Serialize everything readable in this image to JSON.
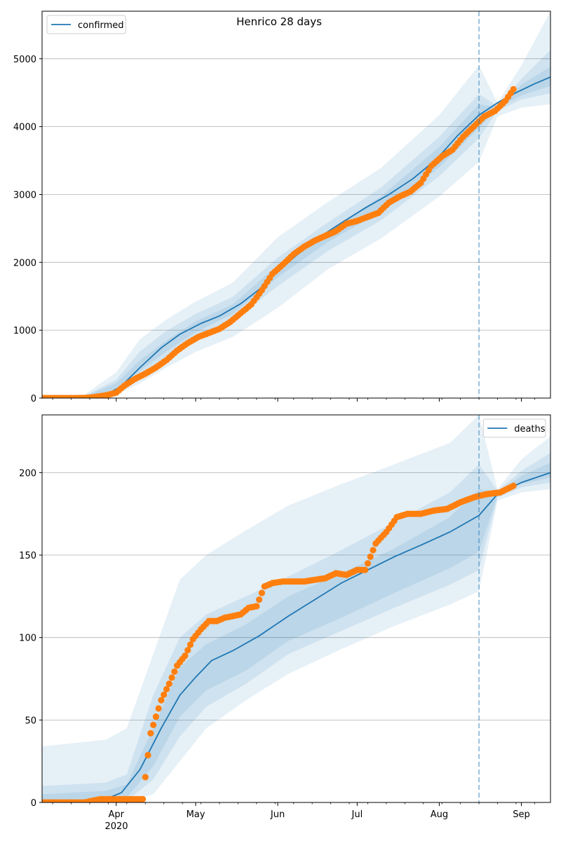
{
  "figure": {
    "title": "Henrico 28 days",
    "x_axis_year_label": "2020",
    "x_tick_labels": [
      "Apr",
      "May",
      "Jun",
      "Jul",
      "Aug",
      "Sep"
    ],
    "x_tick_dates": [
      "2020-04-01",
      "2020-05-01",
      "2020-06-01",
      "2020-07-01",
      "2020-08-01",
      "2020-09-01"
    ],
    "x_range": [
      "2020-03-04",
      "2020-09-12"
    ],
    "forecast_start_date": "2020-08-16"
  },
  "chart_data": [
    {
      "type": "line",
      "title": "Henrico 28 days",
      "xlabel": "",
      "ylabel": "",
      "ylim": [
        0,
        5700
      ],
      "yticks": [
        0,
        1000,
        2000,
        3000,
        4000,
        5000
      ],
      "grid": "horizontal",
      "legend": {
        "location": "upper-left",
        "entries": [
          "confirmed"
        ]
      },
      "colors": {
        "model": "#1f77b4",
        "observed": "#ff7f0e",
        "band": "#1f77b4"
      },
      "model_median": {
        "name": "confirmed",
        "x": [
          "2020-03-04",
          "2020-03-20",
          "2020-03-28",
          "2020-04-03",
          "2020-04-10",
          "2020-04-18",
          "2020-04-25",
          "2020-05-03",
          "2020-05-10",
          "2020-05-18",
          "2020-05-25",
          "2020-06-01",
          "2020-06-08",
          "2020-06-16",
          "2020-06-25",
          "2020-07-04",
          "2020-07-13",
          "2020-07-22",
          "2020-07-31",
          "2020-08-08",
          "2020-08-16",
          "2020-08-23",
          "2020-08-30",
          "2020-09-06",
          "2020-09-12"
        ],
        "y": [
          5,
          10,
          40,
          180,
          450,
          740,
          940,
          1100,
          1210,
          1390,
          1600,
          1870,
          2100,
          2350,
          2580,
          2800,
          3000,
          3230,
          3520,
          3870,
          4170,
          4350,
          4500,
          4630,
          4730
        ]
      },
      "uncertainty_bands": [
        {
          "level": "outer",
          "x": [
            "2020-03-20",
            "2020-04-01",
            "2020-04-10",
            "2020-04-20",
            "2020-05-01",
            "2020-05-15",
            "2020-06-01",
            "2020-06-20",
            "2020-07-10",
            "2020-08-01",
            "2020-08-16",
            "2020-08-23",
            "2020-09-01",
            "2020-09-12"
          ],
          "lower": [
            0,
            50,
            220,
            450,
            680,
            900,
            1330,
            1900,
            2350,
            2970,
            3480,
            4150,
            4280,
            4330
          ],
          "upper": [
            50,
            380,
            870,
            1160,
            1420,
            1700,
            2370,
            2890,
            3390,
            4170,
            4900,
            4350,
            4900,
            5700
          ]
        },
        {
          "level": "middle",
          "x": [
            "2020-03-20",
            "2020-04-01",
            "2020-04-10",
            "2020-04-20",
            "2020-05-01",
            "2020-05-15",
            "2020-06-01",
            "2020-06-20",
            "2020-07-10",
            "2020-08-01",
            "2020-08-16",
            "2020-08-23",
            "2020-09-01",
            "2020-09-12"
          ],
          "lower": [
            0,
            90,
            330,
            600,
            880,
            1130,
            1650,
            2170,
            2620,
            3270,
            3830,
            4230,
            4400,
            4490
          ],
          "upper": [
            30,
            270,
            690,
            990,
            1240,
            1490,
            2070,
            2590,
            3100,
            3850,
            4480,
            4300,
            4700,
            5130
          ]
        },
        {
          "level": "inner",
          "x": [
            "2020-03-20",
            "2020-04-01",
            "2020-04-10",
            "2020-04-20",
            "2020-05-01",
            "2020-05-15",
            "2020-06-01",
            "2020-06-20",
            "2020-07-10",
            "2020-08-01",
            "2020-08-16",
            "2020-08-23",
            "2020-09-01",
            "2020-09-12"
          ],
          "lower": [
            0,
            130,
            400,
            690,
            970,
            1240,
            1780,
            2300,
            2750,
            3400,
            3980,
            4270,
            4460,
            4600
          ],
          "upper": [
            20,
            220,
            560,
            850,
            1130,
            1380,
            1960,
            2470,
            2970,
            3700,
            4330,
            4290,
            4620,
            4880
          ]
        }
      ],
      "observed": {
        "x": [
          "2020-03-04",
          "2020-03-08",
          "2020-03-12",
          "2020-03-16",
          "2020-03-20",
          "2020-03-24",
          "2020-03-28",
          "2020-04-01",
          "2020-04-04",
          "2020-04-08",
          "2020-04-12",
          "2020-04-16",
          "2020-04-20",
          "2020-04-24",
          "2020-04-28",
          "2020-05-02",
          "2020-05-06",
          "2020-05-10",
          "2020-05-14",
          "2020-05-18",
          "2020-05-22",
          "2020-05-26",
          "2020-05-30",
          "2020-06-03",
          "2020-06-07",
          "2020-06-11",
          "2020-06-15",
          "2020-06-19",
          "2020-06-23",
          "2020-06-27",
          "2020-07-01",
          "2020-07-05",
          "2020-07-09",
          "2020-07-13",
          "2020-07-17",
          "2020-07-21",
          "2020-07-25",
          "2020-07-29",
          "2020-08-02",
          "2020-08-06",
          "2020-08-10",
          "2020-08-14",
          "2020-08-18",
          "2020-08-22",
          "2020-08-26",
          "2020-08-29"
        ],
        "y": [
          0,
          0,
          0,
          0,
          2,
          15,
          40,
          80,
          180,
          280,
          360,
          450,
          560,
          700,
          810,
          900,
          960,
          1020,
          1120,
          1250,
          1380,
          1590,
          1830,
          1970,
          2120,
          2230,
          2320,
          2390,
          2460,
          2570,
          2610,
          2670,
          2730,
          2880,
          2970,
          3040,
          3170,
          3420,
          3560,
          3660,
          3850,
          4000,
          4150,
          4230,
          4380,
          4550
        ]
      }
    },
    {
      "type": "line",
      "xlabel": "",
      "ylabel": "",
      "ylim": [
        0,
        235
      ],
      "yticks": [
        0,
        50,
        100,
        150,
        200
      ],
      "grid": "horizontal",
      "legend": {
        "location": "upper-right",
        "entries": [
          "deaths"
        ]
      },
      "colors": {
        "model": "#1f77b4",
        "observed": "#ff7f0e",
        "band": "#1f77b4"
      },
      "model_median": {
        "name": "deaths",
        "x": [
          "2020-03-04",
          "2020-03-15",
          "2020-03-28",
          "2020-04-03",
          "2020-04-10",
          "2020-04-18",
          "2020-04-25",
          "2020-05-01",
          "2020-05-07",
          "2020-05-15",
          "2020-05-25",
          "2020-06-05",
          "2020-06-15",
          "2020-06-25",
          "2020-07-05",
          "2020-07-15",
          "2020-07-25",
          "2020-08-05",
          "2020-08-16",
          "2020-08-23",
          "2020-09-01",
          "2020-09-12"
        ],
        "y": [
          0,
          1,
          2,
          6,
          20,
          45,
          65,
          76,
          86,
          92,
          101,
          113,
          123,
          133,
          141,
          149,
          156,
          164,
          174,
          187,
          194,
          200
        ]
      },
      "uncertainty_bands": [
        {
          "level": "outer",
          "x": [
            "2020-03-04",
            "2020-03-28",
            "2020-04-05",
            "2020-04-15",
            "2020-04-25",
            "2020-05-05",
            "2020-05-20",
            "2020-06-05",
            "2020-06-25",
            "2020-07-15",
            "2020-08-05",
            "2020-08-16",
            "2020-08-23",
            "2020-09-01",
            "2020-09-12"
          ],
          "lower": [
            0,
            0,
            0,
            5,
            25,
            45,
            62,
            78,
            93,
            107,
            120,
            128,
            183,
            188,
            190
          ],
          "upper": [
            34,
            38,
            45,
            90,
            135,
            150,
            165,
            180,
            193,
            205,
            218,
            235,
            190,
            208,
            222
          ]
        },
        {
          "level": "middle",
          "x": [
            "2020-03-04",
            "2020-03-28",
            "2020-04-05",
            "2020-04-15",
            "2020-04-25",
            "2020-05-05",
            "2020-05-20",
            "2020-06-05",
            "2020-06-25",
            "2020-07-15",
            "2020-08-05",
            "2020-08-16",
            "2020-08-23",
            "2020-09-01",
            "2020-09-12"
          ],
          "lower": [
            0,
            0,
            1,
            14,
            40,
            58,
            72,
            90,
            104,
            118,
            132,
            141,
            185,
            191,
            194
          ],
          "upper": [
            10,
            12,
            17,
            65,
            100,
            114,
            125,
            137,
            153,
            170,
            188,
            205,
            189,
            201,
            212
          ]
        },
        {
          "level": "inner",
          "x": [
            "2020-03-04",
            "2020-03-28",
            "2020-04-05",
            "2020-04-15",
            "2020-04-25",
            "2020-05-05",
            "2020-05-20",
            "2020-06-05",
            "2020-06-25",
            "2020-07-15",
            "2020-08-05",
            "2020-08-16",
            "2020-08-23",
            "2020-09-01",
            "2020-09-12"
          ],
          "lower": [
            0,
            0,
            3,
            22,
            52,
            68,
            80,
            98,
            112,
            127,
            142,
            152,
            186,
            193,
            197
          ],
          "upper": [
            5,
            7,
            11,
            45,
            82,
            96,
            108,
            125,
            139,
            154,
            173,
            190,
            188,
            198,
            206
          ]
        }
      ],
      "observed": {
        "x": [
          "2020-03-04",
          "2020-03-10",
          "2020-03-20",
          "2020-03-26",
          "2020-04-01",
          "2020-04-07",
          "2020-04-11",
          "2020-04-14",
          "2020-04-16",
          "2020-04-18",
          "2020-04-21",
          "2020-04-24",
          "2020-04-27",
          "2020-04-30",
          "2020-05-03",
          "2020-05-06",
          "2020-05-09",
          "2020-05-12",
          "2020-05-15",
          "2020-05-18",
          "2020-05-21",
          "2020-05-24",
          "2020-05-27",
          "2020-05-30",
          "2020-06-03",
          "2020-06-07",
          "2020-06-11",
          "2020-06-15",
          "2020-06-19",
          "2020-06-23",
          "2020-06-27",
          "2020-07-01",
          "2020-07-04",
          "2020-07-08",
          "2020-07-12",
          "2020-07-16",
          "2020-07-20",
          "2020-07-25",
          "2020-07-30",
          "2020-08-04",
          "2020-08-09",
          "2020-08-14",
          "2020-08-19",
          "2020-08-24",
          "2020-08-29"
        ],
        "y": [
          0,
          0,
          0,
          2,
          2,
          2,
          2,
          42,
          52,
          62,
          72,
          83,
          89,
          99,
          105,
          110,
          110,
          112,
          113,
          114,
          118,
          119,
          131,
          133,
          134,
          134,
          134,
          135,
          136,
          139,
          138,
          141,
          141,
          157,
          164,
          173,
          175,
          175,
          177,
          178,
          182,
          185,
          187,
          188,
          192
        ]
      }
    }
  ]
}
